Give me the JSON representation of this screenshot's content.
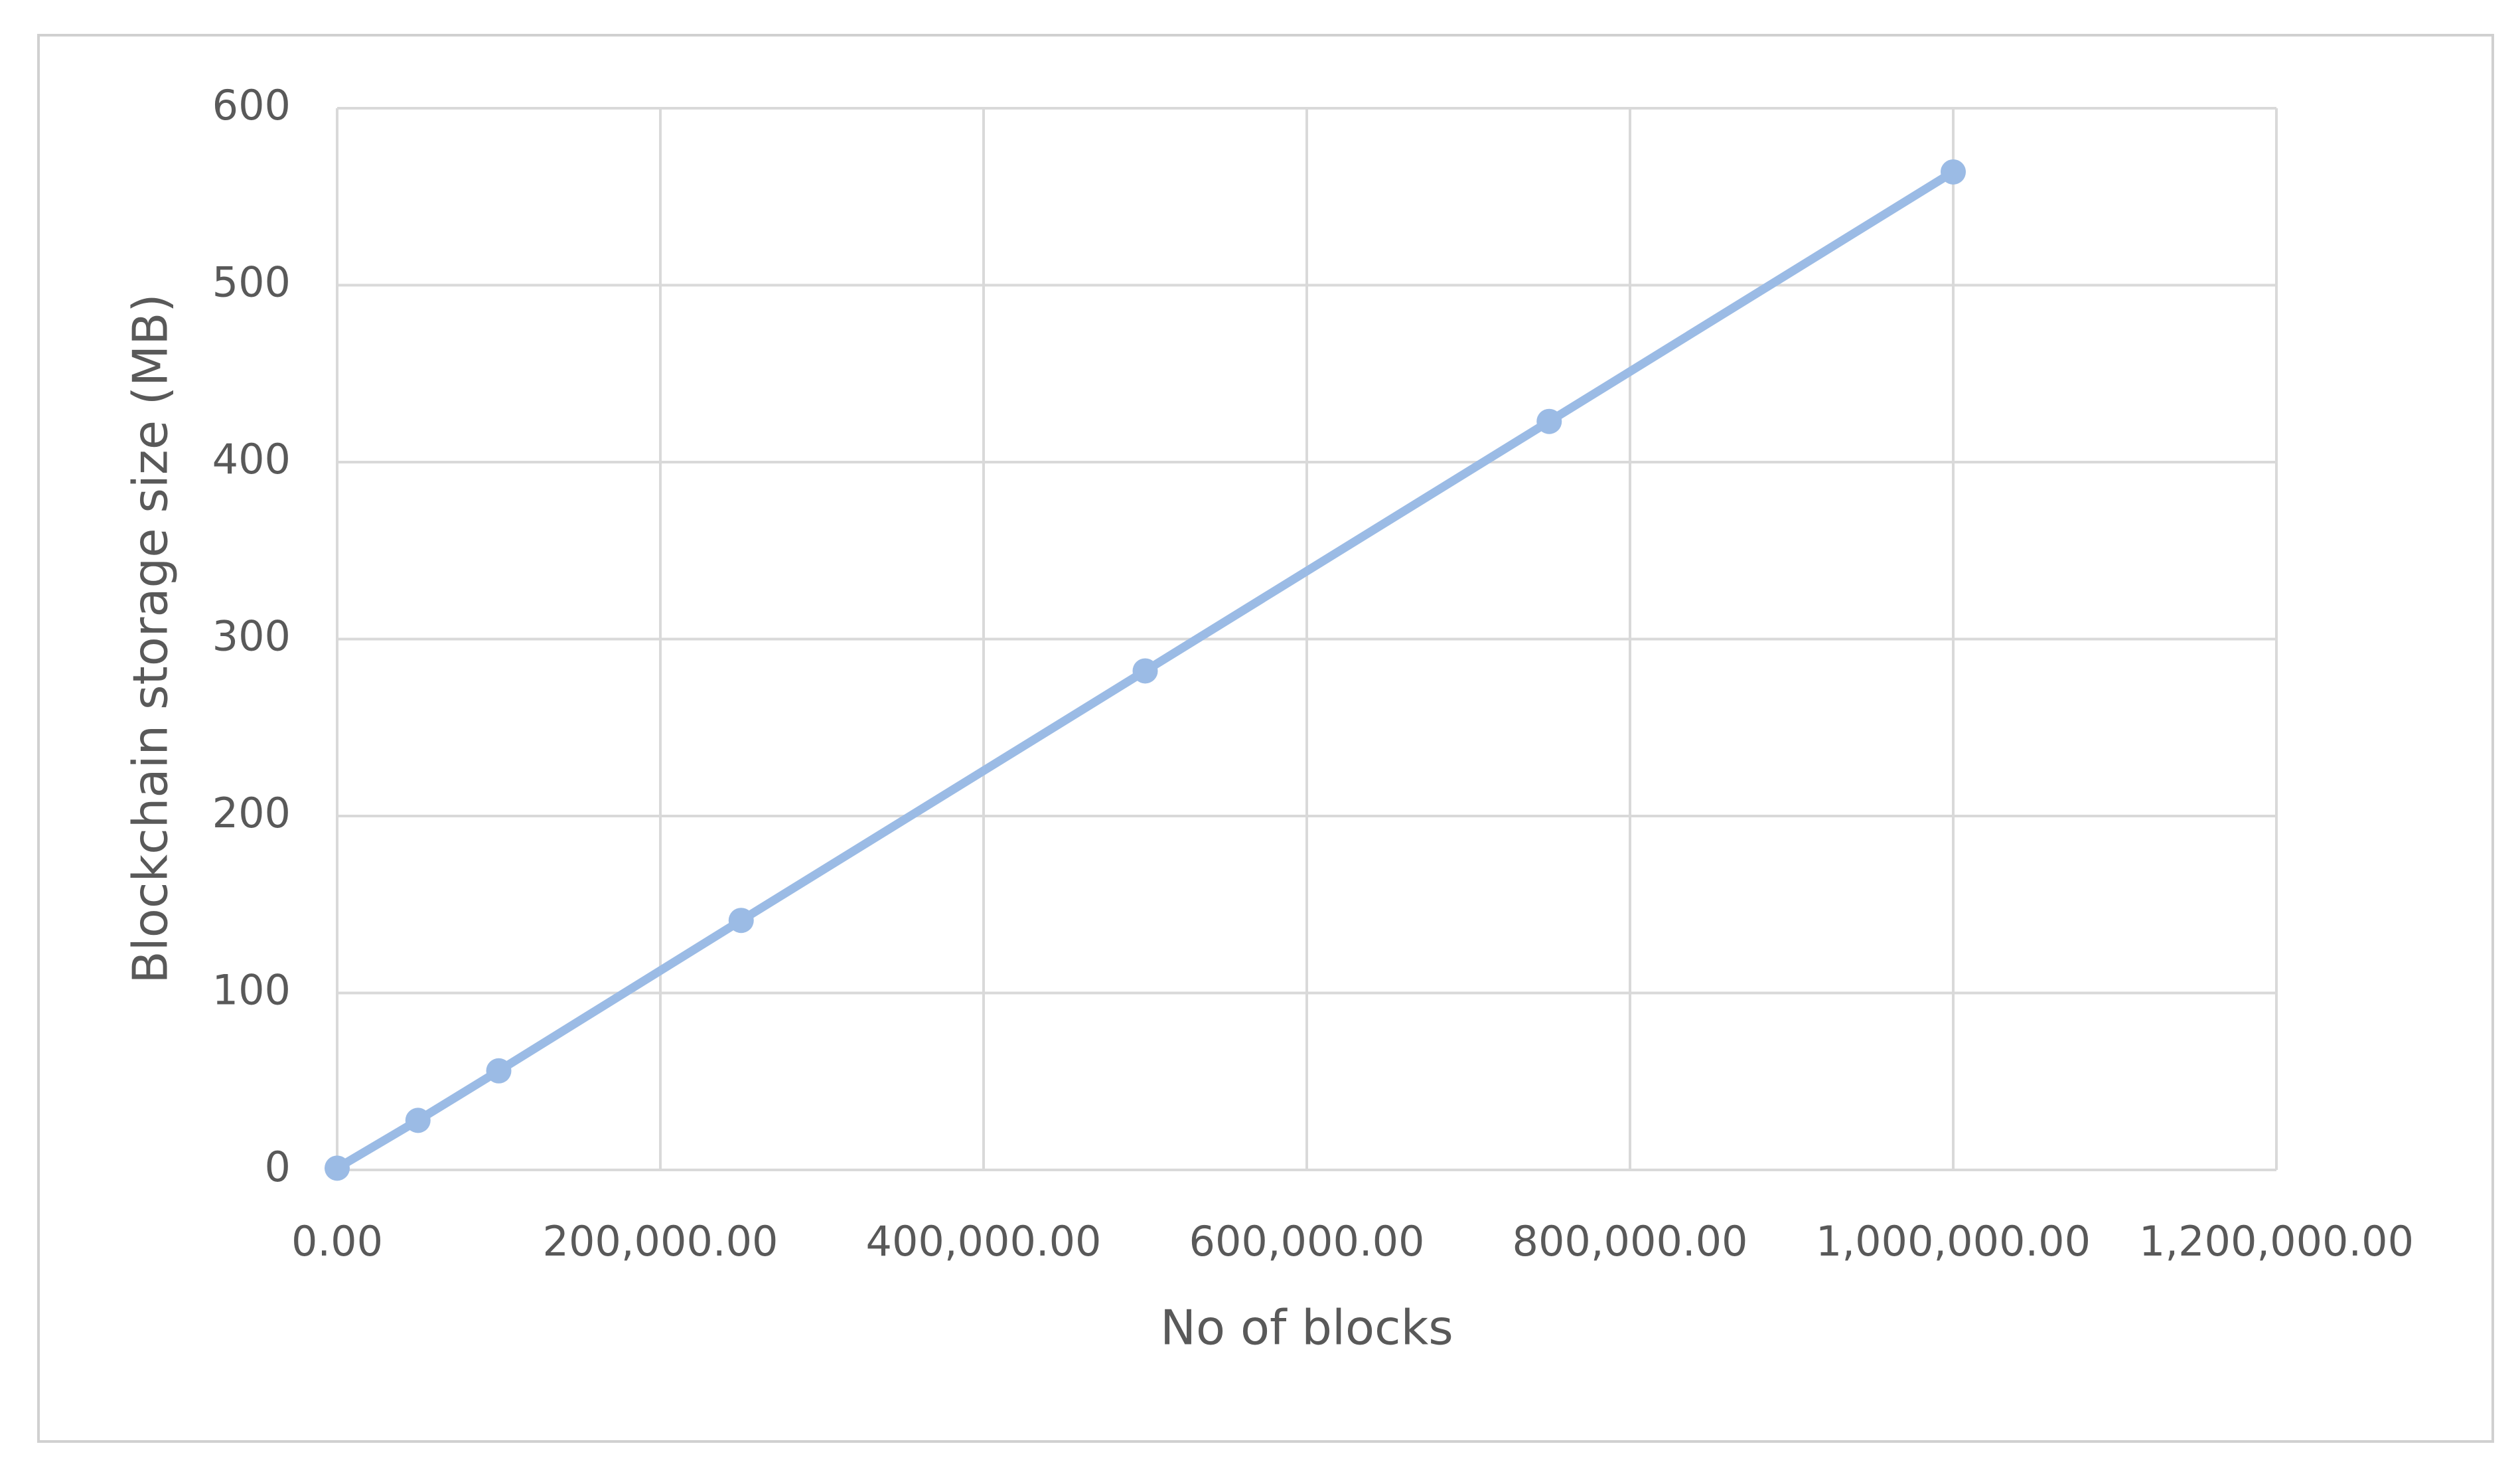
{
  "chart_data": {
    "type": "line",
    "x_label": "No of blocks",
    "y_label": "Blockchain storage size (MB)",
    "x": [
      0,
      50000,
      100000,
      250000,
      500000,
      750000,
      1000000
    ],
    "values": [
      1,
      28,
      56,
      141,
      282,
      423,
      564
    ],
    "color": "#9bbbe5",
    "xlim": [
      0,
      1200000
    ],
    "xticks": [
      {
        "value": 0,
        "label": "0.00"
      },
      {
        "value": 200000,
        "label": "200,000.00"
      },
      {
        "value": 400000,
        "label": "400,000.00"
      },
      {
        "value": 600000,
        "label": "600,000.00"
      },
      {
        "value": 800000,
        "label": "800,000.00"
      },
      {
        "value": 1000000,
        "label": "1,000,000.00"
      },
      {
        "value": 1200000,
        "label": "1,200,000.00"
      }
    ],
    "ylim": [
      0,
      600
    ],
    "yticks": [
      0,
      100,
      200,
      300,
      400,
      500,
      600
    ],
    "grid": true
  }
}
